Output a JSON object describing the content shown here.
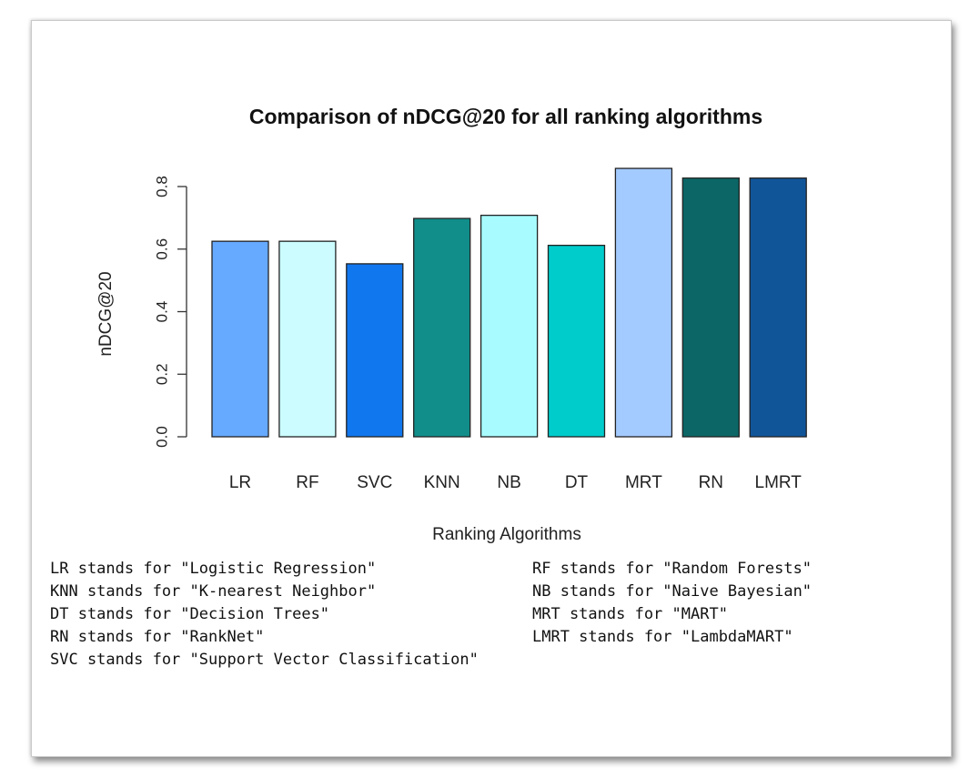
{
  "chart_data": {
    "type": "bar",
    "title": "Comparison of nDCG@20 for all ranking algorithms",
    "xlabel": "Ranking Algorithms",
    "ylabel": "nDCG@20",
    "ylim": [
      0,
      0.8
    ],
    "yticks": [
      "0.0",
      "0.2",
      "0.4",
      "0.6",
      "0.8"
    ],
    "ytick_values": [
      0,
      0.2,
      0.4,
      0.6,
      0.8
    ],
    "categories": [
      "LR",
      "RF",
      "SVC",
      "KNN",
      "NB",
      "DT",
      "MRT",
      "RN",
      "LMRT"
    ],
    "values": [
      0.625,
      0.625,
      0.553,
      0.698,
      0.708,
      0.612,
      0.858,
      0.827,
      0.827
    ],
    "colors": [
      "#66aaff",
      "#ccfcff",
      "#1177ee",
      "#118e8a",
      "#a8fcff",
      "#00cccc",
      "#a3cbff",
      "#0c6666",
      "#115599"
    ],
    "grid": false,
    "legend": "none"
  },
  "legend_notes": [
    [
      "LR stands for \"Logistic Regression\"",
      "RF stands for \"Random Forests\""
    ],
    [
      "KNN stands for \"K-nearest Neighbor\"",
      "NB stands for \"Naive Bayesian\""
    ],
    [
      "DT stands for \"Decision Trees\"",
      "MRT stands for \"MART\""
    ],
    [
      "RN stands for \"RankNet\"",
      "LMRT stands for \"LambdaMART\""
    ],
    [
      "SVC stands for \"Support Vector Classification\""
    ]
  ]
}
